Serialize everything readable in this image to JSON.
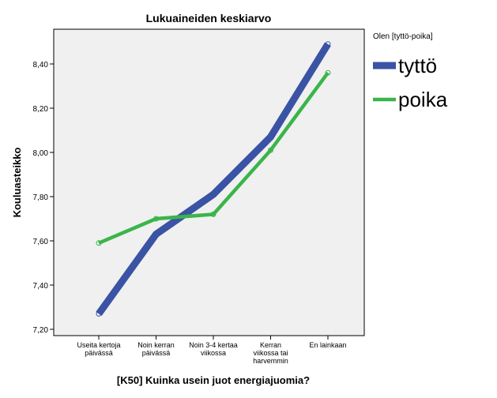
{
  "chart_data": {
    "type": "line",
    "title": "Lukuaineiden keskiarvo",
    "xlabel": "[K50] Kuinka usein juot energiajuomia?",
    "ylabel": "Kouluasteikko",
    "categories": [
      [
        "Useita kertoja",
        "päivässä"
      ],
      [
        "Noin kerran",
        "päivässä"
      ],
      [
        "Noin 3-4 kertaa",
        "viikossa"
      ],
      [
        "Kerran",
        "viikossa tai",
        "harvemmin"
      ],
      [
        "En lainkaan"
      ]
    ],
    "yticks": [
      "7,20",
      "7,40",
      "7,60",
      "7,80",
      "8,00",
      "8,20",
      "8,40"
    ],
    "ylim": [
      7.2,
      8.56
    ],
    "legend": {
      "title": "Olen [tyttö-poika]",
      "position": "right"
    },
    "series": [
      {
        "name": "tyttö",
        "color": "#3a53a4",
        "values": [
          7.27,
          7.63,
          7.81,
          8.07,
          8.49
        ]
      },
      {
        "name": "poika",
        "color": "#3ab54a",
        "values": [
          7.59,
          7.7,
          7.72,
          8.01,
          8.36
        ]
      }
    ],
    "grid": false
  }
}
